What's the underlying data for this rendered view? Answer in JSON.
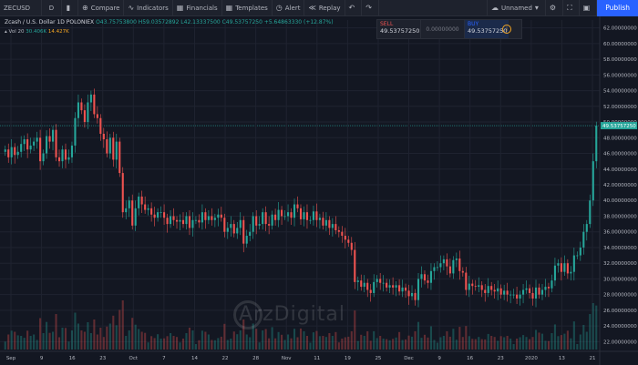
{
  "toolbar": {
    "symbol": "ZECUSD",
    "interval": "D",
    "compare": "Compare",
    "indicators": "Indicators",
    "financials": "Financials",
    "templates": "Templates",
    "alert": "Alert",
    "replay": "Replay",
    "layout_name": "Unnamed",
    "publish": "Publish"
  },
  "legend": {
    "title": "Zcash / U.S. Dollar  1D  POLONIEX",
    "ohlc": "O43.75753800  H59.03572892  L42.13337500  C49.53757250  +5.64863330 (+12.87%)",
    "vol_label": "Vol 20",
    "vol_value": "30.406K",
    "vol_ma": "14.427K"
  },
  "trade": {
    "sell_label": "SELL",
    "sell_price": "49.53757250",
    "spread": "0.00000000",
    "buy_label": "BUY",
    "buy_price": "49.53757250"
  },
  "watermark": "ArzDigital",
  "colors": {
    "up": "#26a69a",
    "down": "#ef5350",
    "background": "#131722",
    "accent": "#2962ff"
  },
  "chart_data": {
    "type": "candlestick",
    "symbol": "ZECUSD",
    "price_axis_labels": [
      "62.00000000",
      "60.00000000",
      "58.00000000",
      "56.00000000",
      "54.00000000",
      "52.00000000",
      "50.00000000",
      "49.53757250",
      "48.00000000",
      "46.00000000",
      "44.00000000",
      "42.00000000",
      "40.00000000",
      "38.00000000",
      "36.00000000",
      "34.00000000",
      "32.00000000",
      "30.00000000",
      "28.00000000",
      "26.00000000",
      "24.00000000",
      "22.00000000"
    ],
    "ylim": [
      21,
      63
    ],
    "price_ticks": [
      62,
      60,
      58,
      56,
      54,
      52,
      50,
      48,
      46,
      44,
      42,
      40,
      38,
      36,
      34,
      32,
      30,
      28,
      26,
      24,
      22
    ],
    "last_price": 49.5375725,
    "time_labels": [
      "Sep",
      "9",
      "16",
      "23",
      "Oct",
      "7",
      "14",
      "22",
      "28",
      "Nov",
      "11",
      "19",
      "25",
      "Dec",
      "9",
      "16",
      "23",
      "2020",
      "13",
      "21"
    ],
    "close": [
      46.5,
      45.5,
      46.8,
      45.8,
      46.2,
      47.2,
      47.8,
      46.5,
      47,
      47.5,
      48,
      45,
      46,
      48.2,
      47.5,
      49,
      45.5,
      45,
      46.5,
      45.2,
      45.5,
      47,
      50.5,
      52.5,
      51.5,
      50,
      52.5,
      53.5,
      51,
      50.5,
      48.5,
      47.8,
      46,
      48,
      45.2,
      47.5,
      43.5,
      38.5,
      39,
      40,
      36.8,
      39,
      40.5,
      39.5,
      38.8,
      39,
      38.2,
      37.8,
      38.5,
      38.5,
      37.8,
      37,
      38,
      37.5,
      37.3,
      37.5,
      37,
      38,
      36.5,
      37.5,
      37.5,
      37.2,
      38.5,
      37.5,
      38,
      37.5,
      37.8,
      38.2,
      37.8,
      36,
      36.5,
      37,
      35.8,
      36.5,
      37.5,
      34.5,
      35.5,
      36,
      38,
      36.8,
      37,
      38.5,
      37,
      36.8,
      38.2,
      37.5,
      38.8,
      38,
      38,
      38.5,
      37.8,
      39.5,
      39,
      37.6,
      38.5,
      37.5,
      37.5,
      38.6,
      37.5,
      37.8,
      36.8,
      37.5,
      36.5,
      37,
      36.2,
      36,
      35.5,
      35,
      34.6,
      33.7,
      29.6,
      29.8,
      29,
      29.5,
      28.6,
      28.2,
      29.6,
      30,
      29.5,
      29.5,
      28.9,
      29.2,
      28.9,
      29.2,
      28.4,
      28.9,
      28.5,
      27.8,
      28.2,
      27.3,
      30,
      30.6,
      29.8,
      29.5,
      31,
      31.5,
      31.5,
      32,
      32.5,
      31.6,
      30.7,
      32.4,
      32.6,
      31,
      30.8,
      28.6,
      29.4,
      29.1,
      29,
      29.2,
      28.6,
      28.2,
      29.1,
      28.6,
      28.4,
      28.8,
      28,
      28.5,
      28,
      28,
      28,
      27.5,
      28,
      28.6,
      28.8,
      28.2,
      27.5,
      28.9,
      28,
      28.6,
      29,
      28.8,
      29.8,
      31.7,
      32,
      30.9,
      32,
      30.7,
      30.9,
      33,
      33,
      34,
      36,
      37,
      40,
      45,
      49.54
    ]
  }
}
